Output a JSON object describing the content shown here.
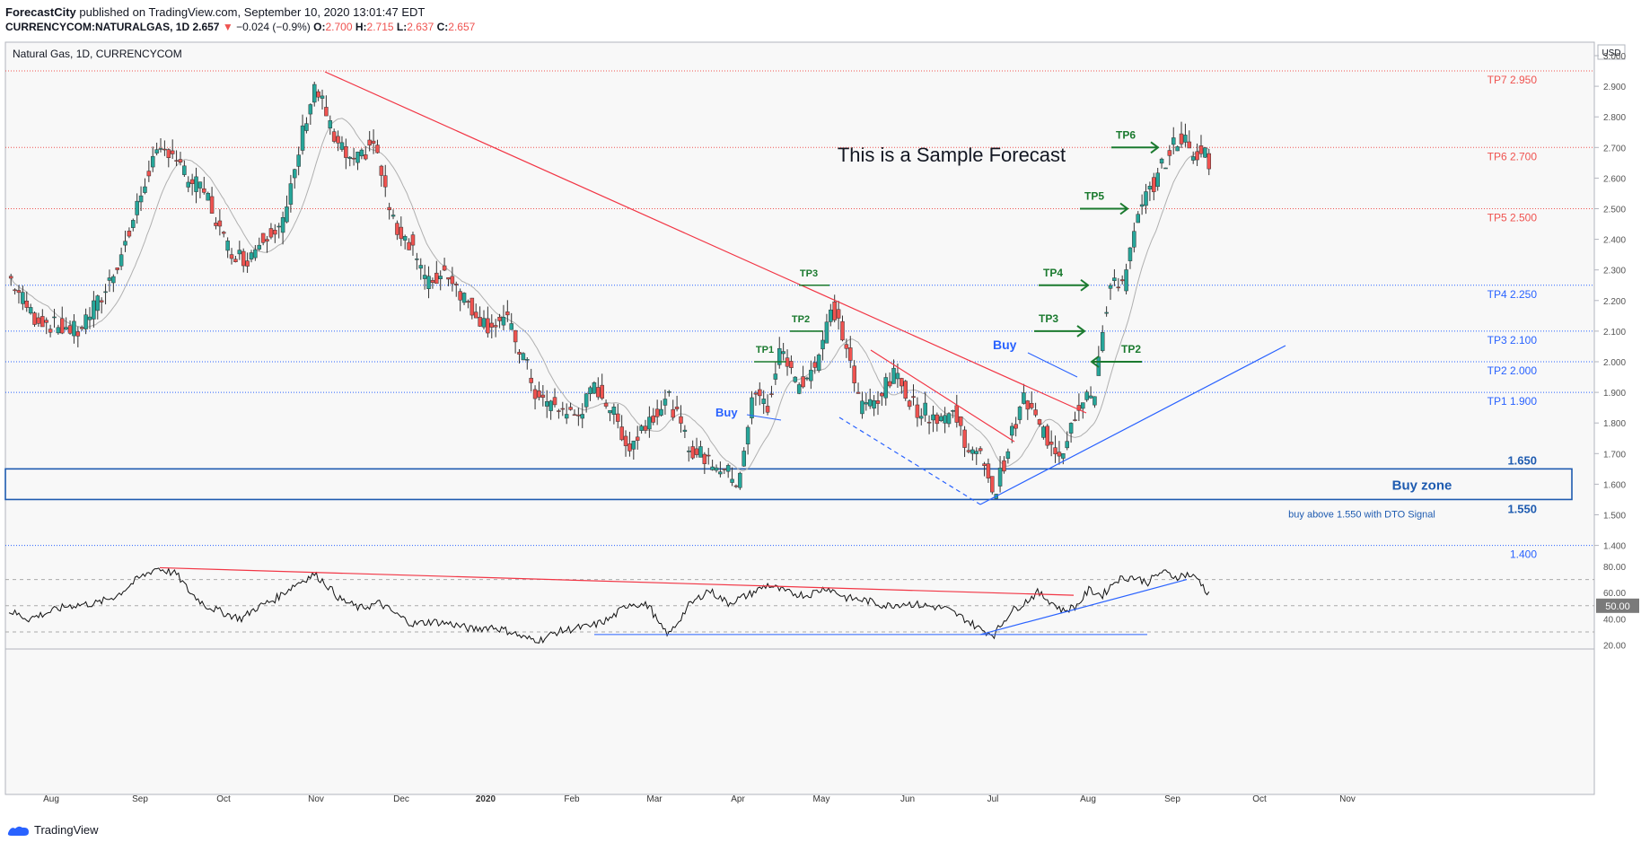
{
  "header": {
    "publisher": "ForecastCity",
    "published_text": "published on TradingView.com, September 10, 2020 13:01:47 EDT",
    "symbol": "CURRENCYCOM:NATURALGAS, 1D",
    "last": "2.657",
    "change": "−0.024 (−0.9%)",
    "o_label": "O:",
    "o": "2.700",
    "h_label": "H:",
    "h": "2.715",
    "l_label": "L:",
    "l": "2.637",
    "c_label": "C:",
    "c": "2.657"
  },
  "chart_title": "Natural Gas, 1D, CURRENCYCOM",
  "sample_text": "This is a Sample Forecast",
  "currency": "USD",
  "footer_brand": "TradingView",
  "colors": {
    "up": "#26a69a",
    "down": "#ef5350",
    "trend_red": "#f23645",
    "trend_blue": "#2962ff",
    "tp_green": "#1b7a2f",
    "buyzone": "#1e5bb0",
    "ma": "#b0b0b0"
  },
  "chart_data": {
    "type": "candlestick",
    "y_axis_ticks": [
      "3.000",
      "2.900",
      "2.800",
      "2.700",
      "2.600",
      "2.500",
      "2.400",
      "2.300",
      "2.200",
      "2.100",
      "2.000",
      "1.900",
      "1.800",
      "1.700",
      "1.600",
      "1.500",
      "1.400"
    ],
    "x_axis_ticks": [
      "Aug",
      "Sep",
      "Oct",
      "Nov",
      "Dec",
      "2020",
      "Feb",
      "Mar",
      "Apr",
      "May",
      "Jun",
      "Jul",
      "Aug",
      "Sep",
      "Oct",
      "Nov"
    ],
    "ylim": [
      1.36,
      3.02
    ],
    "levels": [
      {
        "label": "TP7 2.950",
        "value": 2.95,
        "color": "red"
      },
      {
        "label": "TP6 2.700",
        "value": 2.7,
        "color": "red"
      },
      {
        "label": "TP5 2.500",
        "value": 2.5,
        "color": "red"
      },
      {
        "label": "TP4 2.250",
        "value": 2.25,
        "color": "blue"
      },
      {
        "label": "TP3 2.100",
        "value": 2.1,
        "color": "blue"
      },
      {
        "label": "TP2 2.000",
        "value": 2.0,
        "color": "blue"
      },
      {
        "label": "TP1 1.900",
        "value": 1.9,
        "color": "blue"
      },
      {
        "label": "1.400",
        "value": 1.4,
        "color": "blue"
      }
    ],
    "buy_zone": {
      "label": "Buy zone",
      "top": 1.65,
      "bottom": 1.55,
      "top_label": "1.650",
      "bottom_label": "1.550",
      "note": "buy above 1.550 with DTO Signal"
    },
    "tp_markers_left": [
      {
        "label": "TP1",
        "value": 2.0
      },
      {
        "label": "TP2",
        "value": 2.1
      },
      {
        "label": "TP3",
        "value": 2.25
      }
    ],
    "tp_markers_right": [
      {
        "label": "TP3",
        "value": 2.1
      },
      {
        "label": "TP4",
        "value": 2.25
      },
      {
        "label": "TP5",
        "value": 2.5
      },
      {
        "label": "TP6",
        "value": 2.7
      },
      {
        "label": "TP2",
        "value": 2.0
      }
    ],
    "buy_labels": [
      "Buy",
      "Buy"
    ],
    "price_anchors": [
      [
        0,
        2.28
      ],
      [
        12,
        2.15
      ],
      [
        22,
        2.12
      ],
      [
        35,
        2.1
      ],
      [
        48,
        2.22
      ],
      [
        60,
        2.4
      ],
      [
        72,
        2.65
      ],
      [
        82,
        2.7
      ],
      [
        90,
        2.6
      ],
      [
        100,
        2.55
      ],
      [
        110,
        2.38
      ],
      [
        120,
        2.33
      ],
      [
        130,
        2.42
      ],
      [
        140,
        2.46
      ],
      [
        150,
        2.78
      ],
      [
        155,
        2.9
      ],
      [
        160,
        2.83
      ],
      [
        165,
        2.72
      ],
      [
        175,
        2.64
      ],
      [
        185,
        2.72
      ],
      [
        195,
        2.45
      ],
      [
        205,
        2.38
      ],
      [
        212,
        2.25
      ],
      [
        222,
        2.3
      ],
      [
        232,
        2.2
      ],
      [
        242,
        2.12
      ],
      [
        252,
        2.14
      ],
      [
        262,
        2.0
      ],
      [
        268,
        1.88
      ],
      [
        278,
        1.85
      ],
      [
        288,
        1.82
      ],
      [
        298,
        1.92
      ],
      [
        305,
        1.85
      ],
      [
        315,
        1.72
      ],
      [
        325,
        1.82
      ],
      [
        335,
        1.88
      ],
      [
        345,
        1.72
      ],
      [
        360,
        1.66
      ],
      [
        370,
        1.61
      ],
      [
        378,
        1.9
      ],
      [
        385,
        1.85
      ],
      [
        392,
        2.05
      ],
      [
        400,
        1.92
      ],
      [
        410,
        2.0
      ],
      [
        418,
        2.18
      ],
      [
        425,
        2.05
      ],
      [
        432,
        1.85
      ],
      [
        440,
        1.88
      ],
      [
        450,
        1.96
      ],
      [
        460,
        1.85
      ],
      [
        470,
        1.82
      ],
      [
        480,
        1.83
      ],
      [
        488,
        1.7
      ],
      [
        495,
        1.68
      ],
      [
        500,
        1.56
      ],
      [
        508,
        1.74
      ],
      [
        515,
        1.88
      ],
      [
        522,
        1.8
      ],
      [
        528,
        1.74
      ],
      [
        534,
        1.7
      ],
      [
        540,
        1.82
      ],
      [
        546,
        1.9
      ],
      [
        551,
        1.88
      ],
      [
        556,
        2.15
      ],
      [
        560,
        2.28
      ],
      [
        566,
        2.25
      ],
      [
        572,
        2.45
      ],
      [
        578,
        2.55
      ],
      [
        584,
        2.62
      ],
      [
        590,
        2.7
      ],
      [
        596,
        2.74
      ],
      [
        600,
        2.66
      ],
      [
        605,
        2.7
      ],
      [
        609,
        2.66
      ]
    ],
    "oscillator": {
      "ylim": [
        18,
        84
      ],
      "ticks": [
        "80.00",
        "60.00",
        "40.00",
        "20.00"
      ],
      "current_label": "50.00",
      "dashed_levels": [
        70,
        50,
        30
      ],
      "anchors": [
        [
          0,
          46
        ],
        [
          10,
          40
        ],
        [
          20,
          45
        ],
        [
          30,
          50
        ],
        [
          45,
          52
        ],
        [
          55,
          58
        ],
        [
          65,
          70
        ],
        [
          75,
          79
        ],
        [
          85,
          74
        ],
        [
          92,
          60
        ],
        [
          100,
          50
        ],
        [
          110,
          44
        ],
        [
          118,
          40
        ],
        [
          125,
          48
        ],
        [
          135,
          55
        ],
        [
          145,
          66
        ],
        [
          155,
          74
        ],
        [
          160,
          68
        ],
        [
          168,
          55
        ],
        [
          178,
          48
        ],
        [
          188,
          52
        ],
        [
          198,
          42
        ],
        [
          205,
          36
        ],
        [
          215,
          38
        ],
        [
          225,
          36
        ],
        [
          235,
          32
        ],
        [
          245,
          34
        ],
        [
          255,
          30
        ],
        [
          262,
          25
        ],
        [
          270,
          24
        ],
        [
          278,
          30
        ],
        [
          288,
          33
        ],
        [
          295,
          34
        ],
        [
          305,
          40
        ],
        [
          315,
          52
        ],
        [
          325,
          50
        ],
        [
          330,
          35
        ],
        [
          335,
          28
        ],
        [
          345,
          50
        ],
        [
          355,
          62
        ],
        [
          365,
          52
        ],
        [
          375,
          58
        ],
        [
          385,
          66
        ],
        [
          395,
          60
        ],
        [
          405,
          58
        ],
        [
          415,
          64
        ],
        [
          425,
          56
        ],
        [
          435,
          54
        ],
        [
          445,
          50
        ],
        [
          455,
          52
        ],
        [
          465,
          50
        ],
        [
          475,
          48
        ],
        [
          485,
          40
        ],
        [
          493,
          32
        ],
        [
          500,
          28
        ],
        [
          508,
          45
        ],
        [
          515,
          52
        ],
        [
          522,
          60
        ],
        [
          528,
          54
        ],
        [
          535,
          46
        ],
        [
          542,
          50
        ],
        [
          548,
          62
        ],
        [
          555,
          58
        ],
        [
          562,
          70
        ],
        [
          570,
          72
        ],
        [
          578,
          68
        ],
        [
          585,
          76
        ],
        [
          592,
          72
        ],
        [
          598,
          74
        ],
        [
          604,
          70
        ],
        [
          607,
          62
        ],
        [
          609,
          60
        ]
      ]
    }
  }
}
